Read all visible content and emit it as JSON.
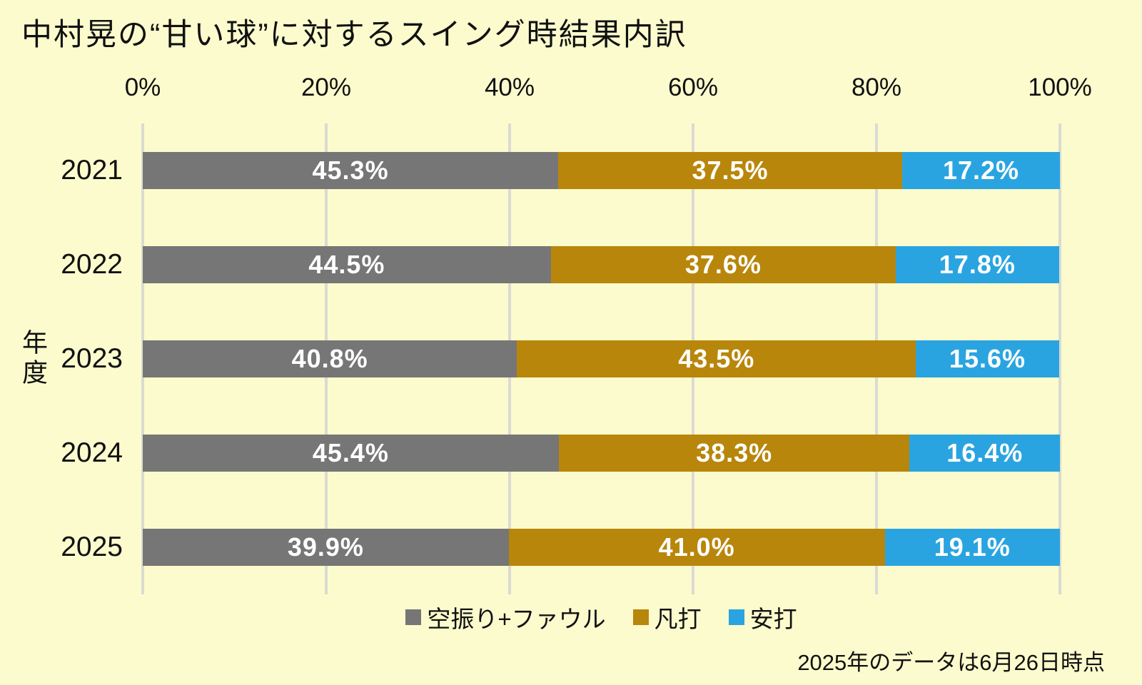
{
  "title": "中村晃の“甘い球”に対するスイング時結果内訳",
  "y_axis_label": "年度",
  "footnote": "2025年のデータは6月26日時点",
  "x_axis": {
    "ticks": [
      "0%",
      "20%",
      "40%",
      "60%",
      "80%",
      "100%"
    ]
  },
  "legend": [
    {
      "label": "空振り+ファウル",
      "color": "#767676"
    },
    {
      "label": "凡打",
      "color": "#B8860B"
    },
    {
      "label": "安打",
      "color": "#2AA4E0"
    }
  ],
  "colors": {
    "background": "#FBFBCD",
    "gridline": "#DBDBD3",
    "bar_label_text": "#FFFFFF",
    "text": "#111111"
  },
  "chart_data": {
    "type": "bar",
    "orientation": "horizontal",
    "stacked": true,
    "title": "中村晃の“甘い球”に対するスイング時結果内訳",
    "xlabel": "",
    "ylabel": "年度",
    "xlim": [
      0,
      100
    ],
    "grid": true,
    "legend_position": "bottom",
    "categories": [
      "2021",
      "2022",
      "2023",
      "2024",
      "2025"
    ],
    "series": [
      {
        "name": "空振り+ファウル",
        "color": "#767676",
        "values": [
          45.3,
          44.5,
          40.8,
          45.4,
          39.9
        ],
        "labels": [
          "45.3%",
          "44.5%",
          "40.8%",
          "45.4%",
          "39.9%"
        ]
      },
      {
        "name": "凡打",
        "color": "#B8860B",
        "values": [
          37.5,
          37.6,
          43.5,
          38.3,
          41.0
        ],
        "labels": [
          "37.5%",
          "37.6%",
          "43.5%",
          "38.3%",
          "41.0%"
        ]
      },
      {
        "name": "安打",
        "color": "#2AA4E0",
        "values": [
          17.2,
          17.8,
          15.6,
          16.4,
          19.1
        ],
        "labels": [
          "17.2%",
          "17.8%",
          "15.6%",
          "16.4%",
          "19.1%"
        ]
      }
    ]
  }
}
